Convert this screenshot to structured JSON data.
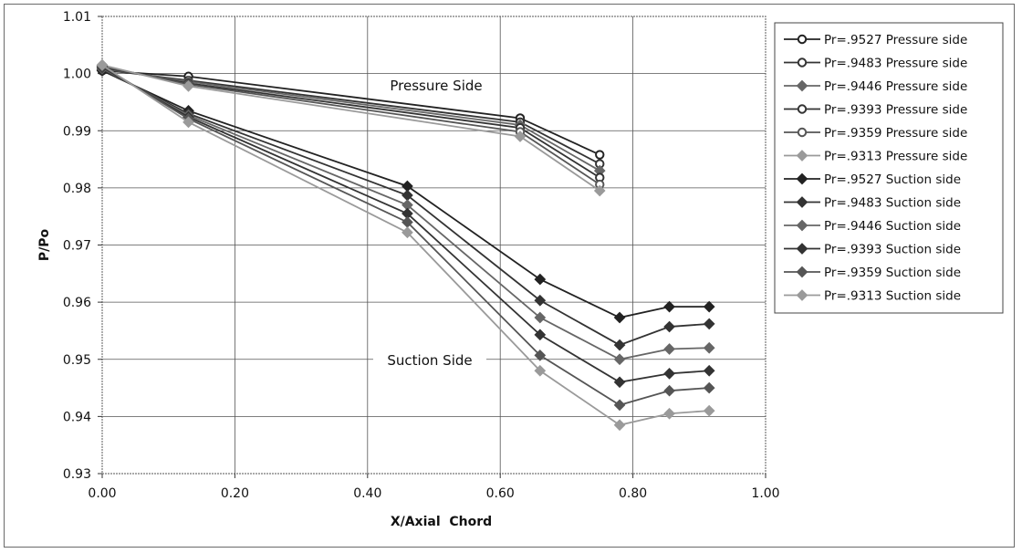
{
  "chart_data": {
    "type": "line",
    "xlabel": "X/Axial  Chord",
    "ylabel": "P/Po",
    "xlim": [
      0,
      1
    ],
    "ylim": [
      0.93,
      1.01
    ],
    "x_ticks": [
      "0.00",
      "0.20",
      "0.40",
      "0.60",
      "0.80",
      "1.00"
    ],
    "y_ticks": [
      "0.93",
      "0.94",
      "0.95",
      "0.96",
      "0.97",
      "0.98",
      "0.99",
      "1.00",
      "1.01"
    ],
    "grid": true,
    "legend_position": "right",
    "annotations": [
      "Pressure Side",
      "Suction Side"
    ],
    "series": [
      {
        "name": "Pr=.9527 Pressure side",
        "color": "#222222",
        "marker": "circle",
        "x": [
          0.0,
          0.13,
          0.63,
          0.75
        ],
        "y": [
          1.0005,
          0.9995,
          0.9922,
          0.9858
        ]
      },
      {
        "name": "Pr=.9483 Pressure side",
        "color": "#333333",
        "marker": "circle",
        "x": [
          0.0,
          0.13,
          0.63,
          0.75
        ],
        "y": [
          1.0007,
          0.9988,
          0.9915,
          0.9842
        ]
      },
      {
        "name": "Pr=.9446 Pressure side",
        "color": "#666666",
        "marker": "diamond",
        "x": [
          0.0,
          0.13,
          0.63,
          0.75
        ],
        "y": [
          1.0009,
          0.9986,
          0.991,
          0.983
        ]
      },
      {
        "name": "Pr=.9393 Pressure side",
        "color": "#333333",
        "marker": "circle",
        "x": [
          0.0,
          0.13,
          0.63,
          0.75
        ],
        "y": [
          1.0011,
          0.9983,
          0.9905,
          0.9818
        ]
      },
      {
        "name": "Pr=.9359 Pressure side",
        "color": "#555555",
        "marker": "circle",
        "x": [
          0.0,
          0.13,
          0.63,
          0.75
        ],
        "y": [
          1.0013,
          0.9981,
          0.9898,
          0.9806
        ]
      },
      {
        "name": "Pr=.9313 Pressure side",
        "color": "#9a9a9a",
        "marker": "diamond",
        "x": [
          0.0,
          0.13,
          0.63,
          0.75
        ],
        "y": [
          1.0015,
          0.9978,
          0.989,
          0.9795
        ]
      },
      {
        "name": "Pr=.9527 Suction side",
        "color": "#222222",
        "marker": "diamond",
        "x": [
          0.0,
          0.13,
          0.46,
          0.66,
          0.78,
          0.855,
          0.915
        ],
        "y": [
          1.0005,
          0.9935,
          0.9803,
          0.964,
          0.9573,
          0.9592,
          0.9592
        ]
      },
      {
        "name": "Pr=.9483 Suction side",
        "color": "#333333",
        "marker": "diamond",
        "x": [
          0.0,
          0.13,
          0.46,
          0.66,
          0.78,
          0.855,
          0.915
        ],
        "y": [
          1.0007,
          0.993,
          0.9787,
          0.9603,
          0.9525,
          0.9557,
          0.9562
        ]
      },
      {
        "name": "Pr=.9446 Suction side",
        "color": "#666666",
        "marker": "diamond",
        "x": [
          0.0,
          0.13,
          0.46,
          0.66,
          0.78,
          0.855,
          0.915
        ],
        "y": [
          1.0009,
          0.9927,
          0.977,
          0.9573,
          0.95,
          0.9518,
          0.952
        ]
      },
      {
        "name": "Pr=.9393 Suction side",
        "color": "#333333",
        "marker": "diamond",
        "x": [
          0.0,
          0.13,
          0.46,
          0.66,
          0.78,
          0.855,
          0.915
        ],
        "y": [
          1.0011,
          0.9924,
          0.9755,
          0.9543,
          0.946,
          0.9475,
          0.948
        ]
      },
      {
        "name": "Pr=.9359 Suction side",
        "color": "#555555",
        "marker": "diamond",
        "x": [
          0.0,
          0.13,
          0.46,
          0.66,
          0.78,
          0.855,
          0.915
        ],
        "y": [
          1.0013,
          0.9921,
          0.974,
          0.9507,
          0.942,
          0.9445,
          0.945
        ]
      },
      {
        "name": "Pr=.9313 Suction side",
        "color": "#9a9a9a",
        "marker": "diamond",
        "x": [
          0.0,
          0.13,
          0.46,
          0.66,
          0.78,
          0.855,
          0.915
        ],
        "y": [
          1.0015,
          0.9915,
          0.9722,
          0.948,
          0.9385,
          0.9405,
          0.941
        ]
      }
    ]
  }
}
